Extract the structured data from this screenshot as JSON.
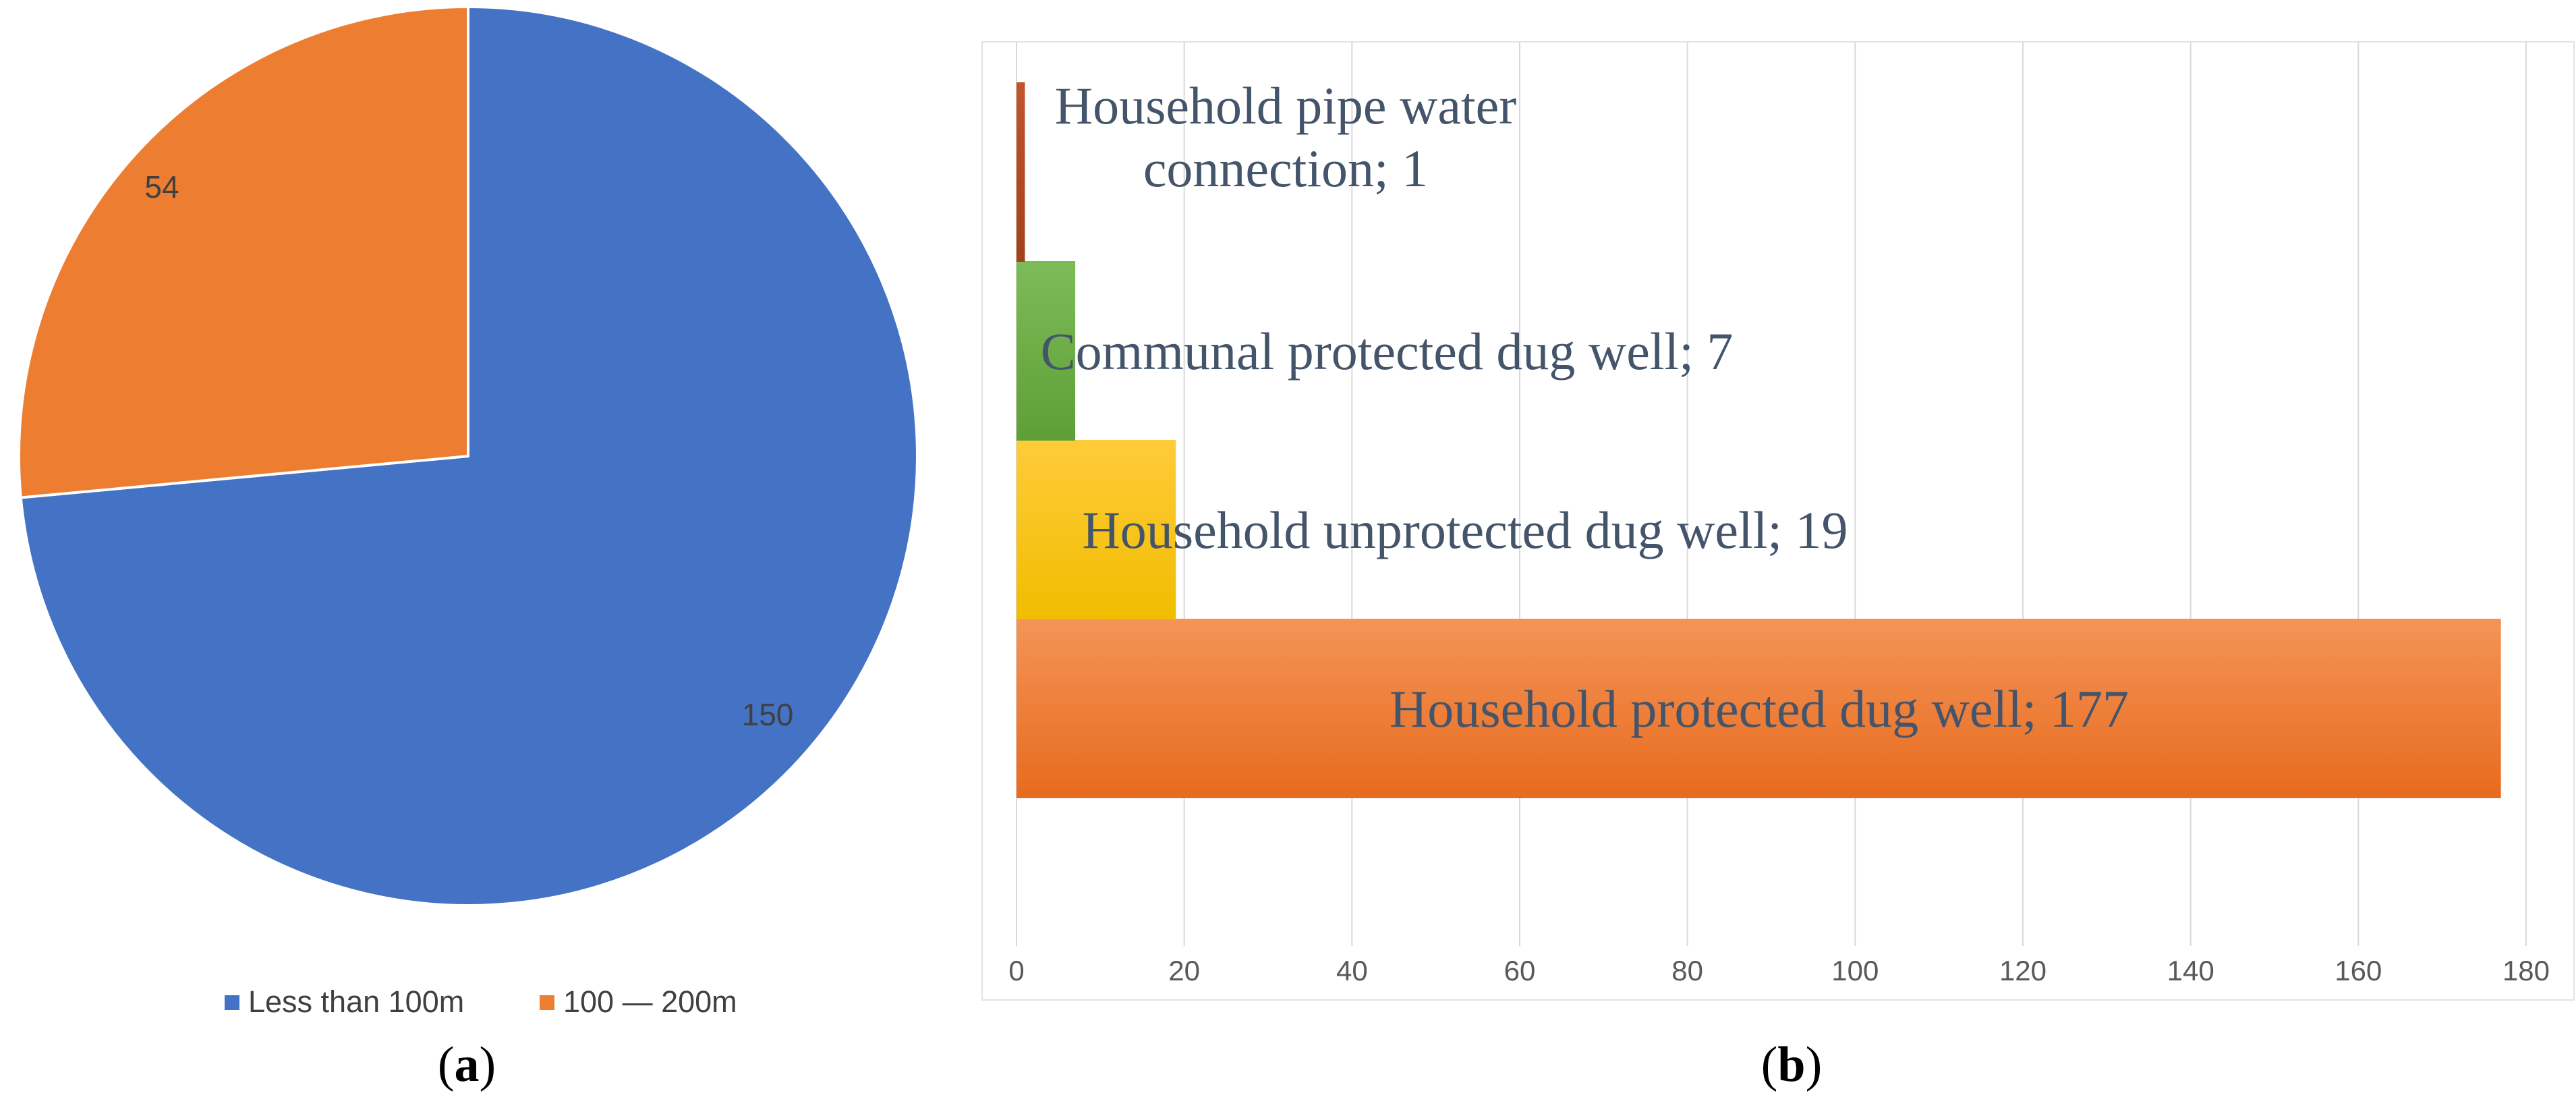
{
  "chart_data": [
    {
      "type": "pie",
      "panel_label": "(a)",
      "panel_letter": "a",
      "slices": [
        {
          "name": "Less than 100m",
          "value": 150,
          "color": "#4472C4"
        },
        {
          "name": "100 — 200m",
          "value": 54,
          "color": "#ED7D31"
        }
      ],
      "legend": "bottom"
    },
    {
      "type": "bar",
      "orientation": "horizontal",
      "panel_label": "(b)",
      "panel_letter": "b",
      "bars": [
        {
          "label": "Household protected dug well; 177",
          "value": 177,
          "colors": [
            "#F39457",
            "#E86B1E"
          ]
        },
        {
          "label": "Household unprotected dug well; 19",
          "value": 19,
          "colors": [
            "#FFCB3A",
            "#F0BD00"
          ]
        },
        {
          "label": "Communal protected dug well; 7",
          "value": 7,
          "colors": [
            "#7DBB58",
            "#5E9F38"
          ]
        },
        {
          "label_lines": [
            "Household pipe water",
            "connection; 1"
          ],
          "value": 1,
          "colors": [
            "#C2552C",
            "#A3401B"
          ]
        }
      ],
      "xlim": [
        0,
        180
      ],
      "xticks": [
        0,
        20,
        40,
        60,
        80,
        100,
        120,
        140,
        160,
        180
      ],
      "grid": true
    }
  ]
}
